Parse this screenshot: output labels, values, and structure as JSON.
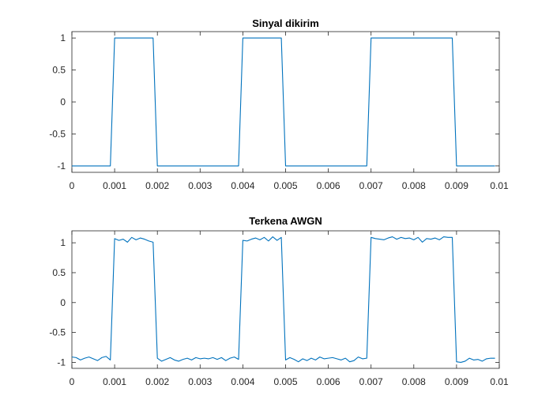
{
  "figure": {
    "background": "#ffffff",
    "line_color": "#0072bd",
    "axis_color": "#262626"
  },
  "chart_data": [
    {
      "type": "line",
      "title": "Sinyal dikirim",
      "xlabel": "",
      "ylabel": "",
      "xlim": [
        0,
        0.01
      ],
      "ylim": [
        -1.1,
        1.1
      ],
      "grid": false,
      "xticks": [
        0,
        0.001,
        0.002,
        0.003,
        0.004,
        0.005,
        0.006,
        0.007,
        0.008,
        0.009,
        0.01
      ],
      "xtick_labels": [
        "0",
        "0.001",
        "0.002",
        "0.003",
        "0.004",
        "0.005",
        "0.006",
        "0.007",
        "0.008",
        "0.009",
        "0.01"
      ],
      "yticks": [
        -1,
        -0.5,
        0,
        0.5,
        1
      ],
      "ytick_labels": [
        "-1",
        "-0.5",
        "0",
        "0.5",
        "1"
      ],
      "series": [
        {
          "color": "#0072bd",
          "x": [
            0,
            0.0009,
            0.001,
            0.0019,
            0.002,
            0.0039,
            0.004,
            0.0049,
            0.005,
            0.0069,
            0.007,
            0.0089,
            0.009,
            0.0099
          ],
          "y": [
            -1,
            -1,
            1,
            1,
            -1,
            -1,
            1,
            1,
            -1,
            -1,
            1,
            1,
            -1,
            -1
          ]
        }
      ]
    },
    {
      "type": "line",
      "title": "Terkena AWGN",
      "xlabel": "",
      "ylabel": "",
      "xlim": [
        0,
        0.01
      ],
      "ylim": [
        -1.1,
        1.2
      ],
      "grid": false,
      "xticks": [
        0,
        0.001,
        0.002,
        0.003,
        0.004,
        0.005,
        0.006,
        0.007,
        0.008,
        0.009,
        0.01
      ],
      "xtick_labels": [
        "0",
        "0.001",
        "0.002",
        "0.003",
        "0.004",
        "0.005",
        "0.006",
        "0.007",
        "0.008",
        "0.009",
        "0.01"
      ],
      "yticks": [
        -1,
        -0.5,
        0,
        0.5,
        1
      ],
      "ytick_labels": [
        "-1",
        "-0.5",
        "0",
        "0.5",
        "1"
      ],
      "series": [
        {
          "color": "#0072bd",
          "x": [
            0,
            0.0001,
            0.0002,
            0.0003,
            0.0004,
            0.0005,
            0.0006,
            0.0007,
            0.0008,
            0.0009,
            0.001,
            0.0011,
            0.0012,
            0.0013,
            0.0014,
            0.0015,
            0.0016,
            0.0017,
            0.0018,
            0.0019,
            0.002,
            0.0021,
            0.0022,
            0.0023,
            0.0024,
            0.0025,
            0.0026,
            0.0027,
            0.0028,
            0.0029,
            0.003,
            0.0031,
            0.0032,
            0.0033,
            0.0034,
            0.0035,
            0.0036,
            0.0037,
            0.0038,
            0.0039,
            0.004,
            0.0041,
            0.0042,
            0.0043,
            0.0044,
            0.0045,
            0.0046,
            0.0047,
            0.0048,
            0.0049,
            0.005,
            0.0051,
            0.0052,
            0.0053,
            0.0054,
            0.0055,
            0.0056,
            0.0057,
            0.0058,
            0.0059,
            0.006,
            0.0061,
            0.0062,
            0.0063,
            0.0064,
            0.0065,
            0.0066,
            0.0067,
            0.0068,
            0.0069,
            0.007,
            0.0071,
            0.0072,
            0.0073,
            0.0074,
            0.0075,
            0.0076,
            0.0077,
            0.0078,
            0.0079,
            0.008,
            0.0081,
            0.0082,
            0.0083,
            0.0084,
            0.0085,
            0.0086,
            0.0087,
            0.0088,
            0.0089,
            0.009,
            0.0091,
            0.0092,
            0.0093,
            0.0094,
            0.0095,
            0.0096,
            0.0097,
            0.0098,
            0.0099
          ],
          "y": [
            -0.91,
            -0.92,
            -0.96,
            -0.93,
            -0.91,
            -0.94,
            -0.97,
            -0.92,
            -0.9,
            -0.96,
            1.07,
            1.04,
            1.06,
            1.01,
            1.09,
            1.05,
            1.08,
            1.06,
            1.03,
            1.01,
            -0.93,
            -0.98,
            -0.95,
            -0.92,
            -0.96,
            -0.98,
            -0.95,
            -0.93,
            -0.96,
            -0.92,
            -0.94,
            -0.93,
            -0.94,
            -0.92,
            -0.95,
            -0.92,
            -0.97,
            -0.93,
            -0.91,
            -0.95,
            1.04,
            1.03,
            1.06,
            1.08,
            1.05,
            1.09,
            1.03,
            1.1,
            1.04,
            1.09,
            -0.96,
            -0.92,
            -0.95,
            -0.99,
            -0.94,
            -0.97,
            -0.93,
            -0.96,
            -0.91,
            -0.94,
            -0.93,
            -0.92,
            -0.94,
            -0.96,
            -0.93,
            -0.99,
            -0.97,
            -0.91,
            -0.94,
            -0.93,
            1.09,
            1.07,
            1.06,
            1.05,
            1.08,
            1.1,
            1.06,
            1.09,
            1.07,
            1.08,
            1.05,
            1.09,
            1.01,
            1.07,
            1.06,
            1.08,
            1.05,
            1.1,
            1.09,
            1.09,
            -0.99,
            -1.0,
            -0.98,
            -0.93,
            -0.96,
            -0.95,
            -0.98,
            -0.94,
            -0.93,
            -0.93
          ]
        }
      ]
    }
  ]
}
